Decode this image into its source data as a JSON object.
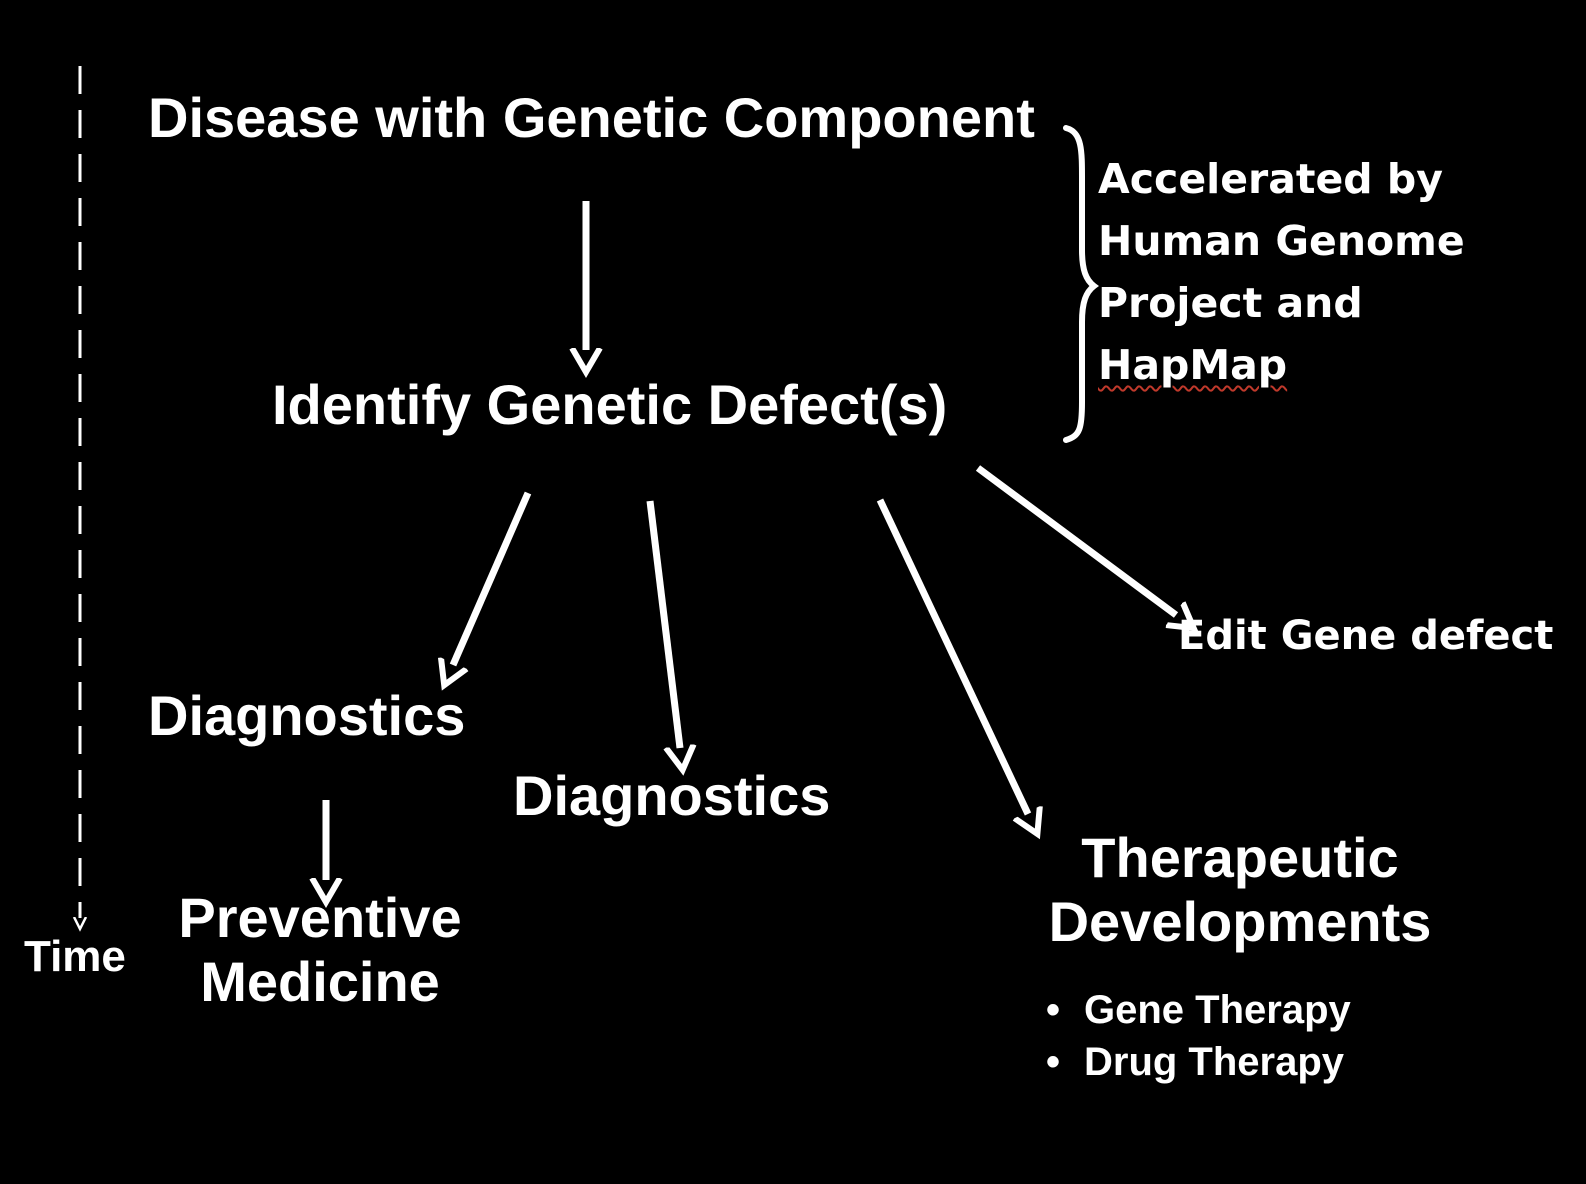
{
  "nodes": {
    "disease": "Disease with Genetic Component",
    "identify": "Identify Genetic Defect(s)",
    "diagnostics_left": "Diagnostics",
    "diagnostics_center": "Diagnostics",
    "preventive_line1": "Preventive",
    "preventive_line2": "Medicine",
    "therapeutic_line1": "Therapeutic",
    "therapeutic_line2": "Developments",
    "edit_gene": "Edit Gene defect"
  },
  "therapies": [
    "Gene Therapy",
    "Drug Therapy"
  ],
  "accelerated_note": {
    "lines": [
      "Accelerated by",
      "Human Genome",
      "Project and",
      "HapMap"
    ]
  },
  "timeline": {
    "label": "Time"
  },
  "colors": {
    "background": "#000000",
    "foreground": "#ffffff",
    "spellcheck_underline": "#c0392b"
  }
}
